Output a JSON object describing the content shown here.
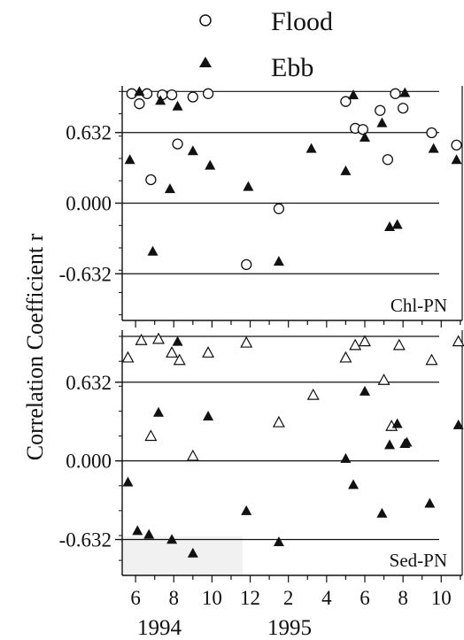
{
  "legend": {
    "placement": "top-center",
    "entries": [
      {
        "label": "Flood",
        "marker": "open-circle"
      },
      {
        "label": "Ebb",
        "marker": "filled-triangle"
      }
    ]
  },
  "ylabel": "Correlation Coefficient r",
  "x_axis": {
    "month_ticks": [
      "6",
      "8",
      "10",
      "12",
      "2",
      "4",
      "6",
      "8",
      "10"
    ],
    "years": [
      "1994",
      "1995"
    ]
  },
  "colors": {
    "ink": "#111111",
    "background": "#ffffff",
    "inset_shade": "#f1f1f1"
  },
  "chart_data": [
    {
      "type": "scatter",
      "panel_label": "Chl-PN",
      "ylim": [
        -1.05,
        1.05
      ],
      "yticks": [
        0.632,
        0.0,
        -0.632
      ],
      "ytick_labels": [
        "0.632",
        "0.000",
        "-0.632"
      ],
      "reference_lines": [
        1.0,
        0.632,
        0.0,
        -0.632
      ],
      "xlim": [
        5.3,
        23.1
      ],
      "x_unit": "month index (1 = Jan 1994)",
      "series": [
        {
          "name": "Flood",
          "marker": "open-circle",
          "points": [
            {
              "x": 5.8,
              "y": 0.98
            },
            {
              "x": 6.2,
              "y": 0.89
            },
            {
              "x": 6.6,
              "y": 0.98
            },
            {
              "x": 7.4,
              "y": 0.97
            },
            {
              "x": 7.9,
              "y": 0.97
            },
            {
              "x": 8.2,
              "y": 0.53
            },
            {
              "x": 9.0,
              "y": 0.95
            },
            {
              "x": 9.8,
              "y": 0.98
            },
            {
              "x": 6.8,
              "y": 0.21
            },
            {
              "x": 11.8,
              "y": -0.55
            },
            {
              "x": 13.5,
              "y": -0.05
            },
            {
              "x": 17.0,
              "y": 0.91
            },
            {
              "x": 17.5,
              "y": 0.67
            },
            {
              "x": 17.9,
              "y": 0.66
            },
            {
              "x": 18.8,
              "y": 0.83
            },
            {
              "x": 19.2,
              "y": 0.39
            },
            {
              "x": 19.6,
              "y": 0.98
            },
            {
              "x": 20.0,
              "y": 0.85
            },
            {
              "x": 21.5,
              "y": 0.63
            },
            {
              "x": 22.8,
              "y": 0.52
            }
          ]
        },
        {
          "name": "Ebb",
          "marker": "filled-triangle",
          "points": [
            {
              "x": 5.7,
              "y": 0.39
            },
            {
              "x": 6.2,
              "y": 1.0
            },
            {
              "x": 6.9,
              "y": -0.43
            },
            {
              "x": 7.3,
              "y": 0.92
            },
            {
              "x": 7.8,
              "y": 0.13
            },
            {
              "x": 8.2,
              "y": 0.87
            },
            {
              "x": 9.0,
              "y": 0.47
            },
            {
              "x": 9.9,
              "y": 0.34
            },
            {
              "x": 11.9,
              "y": 0.15
            },
            {
              "x": 13.5,
              "y": -0.52
            },
            {
              "x": 15.2,
              "y": 0.49
            },
            {
              "x": 17.0,
              "y": 0.29
            },
            {
              "x": 17.4,
              "y": 0.97
            },
            {
              "x": 18.0,
              "y": 0.59
            },
            {
              "x": 18.9,
              "y": 0.72
            },
            {
              "x": 19.3,
              "y": -0.21
            },
            {
              "x": 19.7,
              "y": -0.19
            },
            {
              "x": 20.1,
              "y": 0.99
            },
            {
              "x": 21.6,
              "y": 0.49
            },
            {
              "x": 22.8,
              "y": 0.39
            }
          ]
        }
      ]
    },
    {
      "type": "scatter",
      "panel_label": "Sed-PN",
      "ylim": [
        -0.92,
        1.05
      ],
      "yticks": [
        0.632,
        0.0,
        -0.632
      ],
      "ytick_labels": [
        "0.632",
        "0.000",
        "-0.632"
      ],
      "reference_lines": [
        1.0,
        0.632,
        0.0,
        -0.632
      ],
      "xlim": [
        5.3,
        23.1
      ],
      "x_unit": "month index (1 = Jan 1994)",
      "series": [
        {
          "name": "Flood",
          "marker": "open-triangle",
          "points": [
            {
              "x": 5.6,
              "y": 0.83
            },
            {
              "x": 6.3,
              "y": 0.97
            },
            {
              "x": 6.8,
              "y": 0.2
            },
            {
              "x": 7.2,
              "y": 0.98
            },
            {
              "x": 7.9,
              "y": 0.87
            },
            {
              "x": 8.3,
              "y": 0.81
            },
            {
              "x": 9.0,
              "y": 0.04
            },
            {
              "x": 9.8,
              "y": 0.87
            },
            {
              "x": 11.8,
              "y": 0.95
            },
            {
              "x": 13.5,
              "y": 0.31
            },
            {
              "x": 15.3,
              "y": 0.53
            },
            {
              "x": 17.0,
              "y": 0.83
            },
            {
              "x": 17.5,
              "y": 0.93
            },
            {
              "x": 18.0,
              "y": 0.96
            },
            {
              "x": 19.0,
              "y": 0.65
            },
            {
              "x": 19.4,
              "y": 0.28
            },
            {
              "x": 19.8,
              "y": 0.93
            },
            {
              "x": 21.5,
              "y": 0.81
            },
            {
              "x": 22.9,
              "y": 0.96
            }
          ]
        },
        {
          "name": "Ebb",
          "marker": "filled-triangle",
          "points": [
            {
              "x": 5.6,
              "y": -0.17
            },
            {
              "x": 6.1,
              "y": -0.56
            },
            {
              "x": 6.7,
              "y": -0.59
            },
            {
              "x": 7.2,
              "y": 0.39
            },
            {
              "x": 7.9,
              "y": -0.63
            },
            {
              "x": 8.2,
              "y": 0.96
            },
            {
              "x": 9.0,
              "y": -0.74
            },
            {
              "x": 9.8,
              "y": 0.36
            },
            {
              "x": 11.8,
              "y": -0.4
            },
            {
              "x": 13.5,
              "y": -0.65
            },
            {
              "x": 17.0,
              "y": 0.02
            },
            {
              "x": 17.4,
              "y": -0.19
            },
            {
              "x": 18.0,
              "y": 0.56
            },
            {
              "x": 18.9,
              "y": -0.42
            },
            {
              "x": 19.3,
              "y": 0.13
            },
            {
              "x": 19.7,
              "y": 0.3
            },
            {
              "x": 20.1,
              "y": 0.14
            },
            {
              "x": 20.2,
              "y": 0.15
            },
            {
              "x": 21.4,
              "y": -0.34
            },
            {
              "x": 22.9,
              "y": 0.29
            }
          ]
        }
      ]
    }
  ]
}
